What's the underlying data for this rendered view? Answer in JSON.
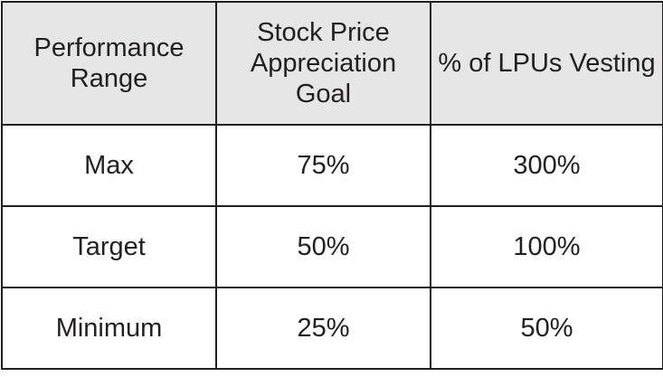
{
  "table": {
    "header": [
      "Performance Range",
      "Stock Price Appreciation Goal",
      "% of LPUs Vesting"
    ],
    "rows": [
      [
        "Max",
        "75%",
        "300%"
      ],
      [
        "Target",
        "50%",
        "100%"
      ],
      [
        "Minimum",
        "25%",
        "50%"
      ]
    ]
  }
}
